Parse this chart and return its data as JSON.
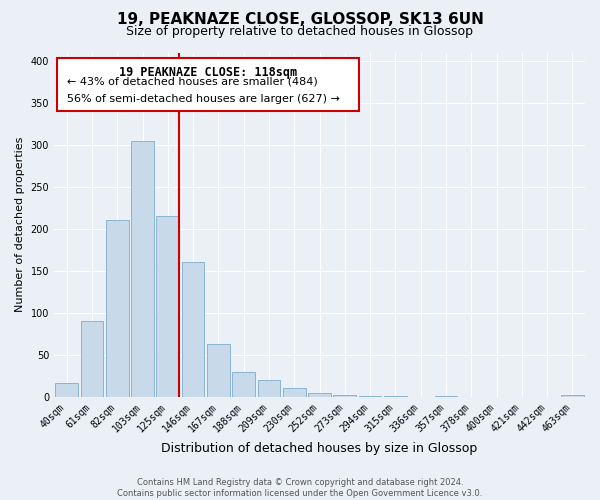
{
  "title": "19, PEAKNAZE CLOSE, GLOSSOP, SK13 6UN",
  "subtitle": "Size of property relative to detached houses in Glossop",
  "xlabel": "Distribution of detached houses by size in Glossop",
  "ylabel": "Number of detached properties",
  "categories": [
    "40sqm",
    "61sqm",
    "82sqm",
    "103sqm",
    "125sqm",
    "146sqm",
    "167sqm",
    "188sqm",
    "209sqm",
    "230sqm",
    "252sqm",
    "273sqm",
    "294sqm",
    "315sqm",
    "336sqm",
    "357sqm",
    "378sqm",
    "400sqm",
    "421sqm",
    "442sqm",
    "463sqm"
  ],
  "values": [
    17,
    90,
    210,
    305,
    215,
    160,
    63,
    30,
    20,
    10,
    4,
    2,
    1,
    1,
    0,
    1,
    0,
    0,
    0,
    0,
    2
  ],
  "bar_color": "#c8d9ea",
  "bar_edge_color": "#8ab4d4",
  "vline_bar_index": 4,
  "vline_color": "#cc0000",
  "annotation_title": "19 PEAKNAZE CLOSE: 118sqm",
  "annotation_line1": "← 43% of detached houses are smaller (484)",
  "annotation_line2": "56% of semi-detached houses are larger (627) →",
  "box_facecolor": "#ffffff",
  "box_edgecolor": "#cc0000",
  "ylim": [
    0,
    410
  ],
  "yticks": [
    0,
    50,
    100,
    150,
    200,
    250,
    300,
    350,
    400
  ],
  "footer_line1": "Contains HM Land Registry data © Crown copyright and database right 2024.",
  "footer_line2": "Contains public sector information licensed under the Open Government Licence v3.0.",
  "bg_color": "#eaf0f6",
  "title_fontsize": 11,
  "subtitle_fontsize": 9,
  "axis_label_fontsize": 8,
  "tick_fontsize": 7,
  "footer_fontsize": 6
}
